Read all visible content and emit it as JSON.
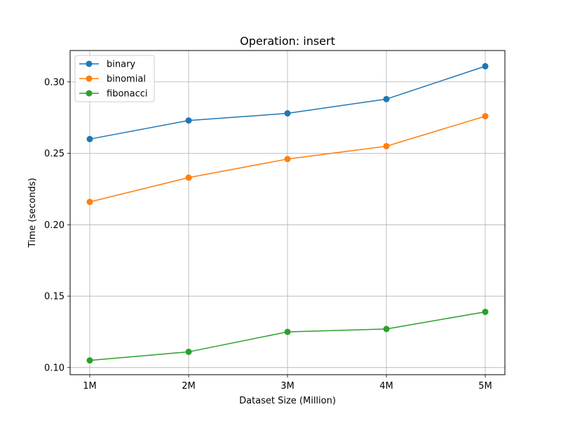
{
  "chart_data": {
    "type": "line",
    "title": "Operation: insert",
    "xlabel": "Dataset Size (Million)",
    "ylabel": "Time (seconds)",
    "categories": [
      "1M",
      "2M",
      "3M",
      "4M",
      "5M"
    ],
    "ylim": [
      0.095,
      0.322
    ],
    "yticks": [
      0.1,
      0.15,
      0.2,
      0.25,
      0.3
    ],
    "ytick_labels": [
      "0.10",
      "0.15",
      "0.20",
      "0.25",
      "0.30"
    ],
    "grid": true,
    "legend_position": "top-left",
    "series": [
      {
        "name": "binary",
        "color": "#1f77b4",
        "values": [
          0.26,
          0.273,
          0.278,
          0.288,
          0.311
        ]
      },
      {
        "name": "binomial",
        "color": "#ff7f0e",
        "values": [
          0.216,
          0.233,
          0.246,
          0.255,
          0.276
        ]
      },
      {
        "name": "fibonacci",
        "color": "#2ca02c",
        "values": [
          0.105,
          0.111,
          0.125,
          0.127,
          0.139
        ]
      }
    ]
  }
}
